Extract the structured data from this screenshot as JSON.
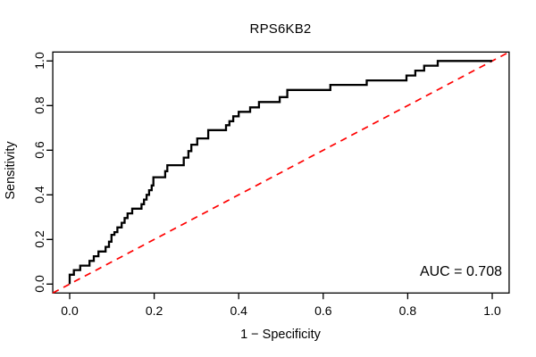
{
  "chart_data": {
    "type": "line",
    "subtype": "roc-step-curve",
    "title": "RPS6KB2",
    "xlabel": "1 − Specificity",
    "ylabel": "Sensitivity",
    "annotation": "AUC = 0.708",
    "auc_value": 0.708,
    "xlim": [
      0.0,
      1.0
    ],
    "ylim": [
      0.0,
      1.0
    ],
    "axis_padding_fraction": 0.04,
    "grid": false,
    "legend": "none",
    "x_ticks": [
      0.0,
      0.2,
      0.4,
      0.6,
      0.8,
      1.0
    ],
    "y_ticks": [
      0.0,
      0.2,
      0.4,
      0.6,
      0.8,
      1.0
    ],
    "x_tick_labels": [
      "0.0",
      "0.2",
      "0.4",
      "0.6",
      "0.8",
      "1.0"
    ],
    "y_tick_labels": [
      "0.0",
      "0.2",
      "0.4",
      "0.6",
      "0.8",
      "1.0"
    ],
    "curve_color": "#000000",
    "box_color": "#000000",
    "text_color": "#000000",
    "background_color": "#ffffff",
    "reference_line": {
      "style": "dashed",
      "color": "#ff0000",
      "from": [
        0.0,
        0.0
      ],
      "to": [
        1.0,
        1.0
      ],
      "spans_full_box": true
    },
    "roc_points": [
      [
        0.0,
        0.0
      ],
      [
        0.0,
        0.042
      ],
      [
        0.01,
        0.042
      ],
      [
        0.01,
        0.063
      ],
      [
        0.025,
        0.063
      ],
      [
        0.025,
        0.083
      ],
      [
        0.047,
        0.083
      ],
      [
        0.047,
        0.104
      ],
      [
        0.057,
        0.104
      ],
      [
        0.057,
        0.125
      ],
      [
        0.068,
        0.125
      ],
      [
        0.068,
        0.146
      ],
      [
        0.085,
        0.146
      ],
      [
        0.085,
        0.167
      ],
      [
        0.093,
        0.167
      ],
      [
        0.093,
        0.19
      ],
      [
        0.099,
        0.19
      ],
      [
        0.099,
        0.221
      ],
      [
        0.106,
        0.221
      ],
      [
        0.106,
        0.233
      ],
      [
        0.113,
        0.233
      ],
      [
        0.113,
        0.254
      ],
      [
        0.123,
        0.254
      ],
      [
        0.123,
        0.275
      ],
      [
        0.13,
        0.275
      ],
      [
        0.13,
        0.296
      ],
      [
        0.137,
        0.296
      ],
      [
        0.137,
        0.317
      ],
      [
        0.148,
        0.317
      ],
      [
        0.148,
        0.338
      ],
      [
        0.17,
        0.338
      ],
      [
        0.17,
        0.358
      ],
      [
        0.176,
        0.358
      ],
      [
        0.176,
        0.379
      ],
      [
        0.182,
        0.379
      ],
      [
        0.182,
        0.4
      ],
      [
        0.188,
        0.4
      ],
      [
        0.188,
        0.421
      ],
      [
        0.194,
        0.421
      ],
      [
        0.194,
        0.442
      ],
      [
        0.198,
        0.442
      ],
      [
        0.198,
        0.479
      ],
      [
        0.226,
        0.479
      ],
      [
        0.226,
        0.506
      ],
      [
        0.231,
        0.506
      ],
      [
        0.231,
        0.533
      ],
      [
        0.27,
        0.533
      ],
      [
        0.27,
        0.567
      ],
      [
        0.281,
        0.567
      ],
      [
        0.281,
        0.596
      ],
      [
        0.288,
        0.596
      ],
      [
        0.288,
        0.625
      ],
      [
        0.302,
        0.625
      ],
      [
        0.302,
        0.653
      ],
      [
        0.328,
        0.653
      ],
      [
        0.328,
        0.69
      ],
      [
        0.37,
        0.69
      ],
      [
        0.37,
        0.712
      ],
      [
        0.378,
        0.712
      ],
      [
        0.378,
        0.73
      ],
      [
        0.387,
        0.73
      ],
      [
        0.387,
        0.752
      ],
      [
        0.4,
        0.752
      ],
      [
        0.4,
        0.772
      ],
      [
        0.427,
        0.772
      ],
      [
        0.427,
        0.792
      ],
      [
        0.448,
        0.792
      ],
      [
        0.448,
        0.816
      ],
      [
        0.497,
        0.816
      ],
      [
        0.497,
        0.838
      ],
      [
        0.515,
        0.838
      ],
      [
        0.515,
        0.87
      ],
      [
        0.617,
        0.87
      ],
      [
        0.617,
        0.893
      ],
      [
        0.703,
        0.893
      ],
      [
        0.703,
        0.913
      ],
      [
        0.797,
        0.913
      ],
      [
        0.797,
        0.935
      ],
      [
        0.818,
        0.935
      ],
      [
        0.818,
        0.957
      ],
      [
        0.839,
        0.957
      ],
      [
        0.839,
        0.979
      ],
      [
        0.871,
        0.979
      ],
      [
        0.871,
        1.0
      ],
      [
        1.0,
        1.0
      ]
    ]
  }
}
